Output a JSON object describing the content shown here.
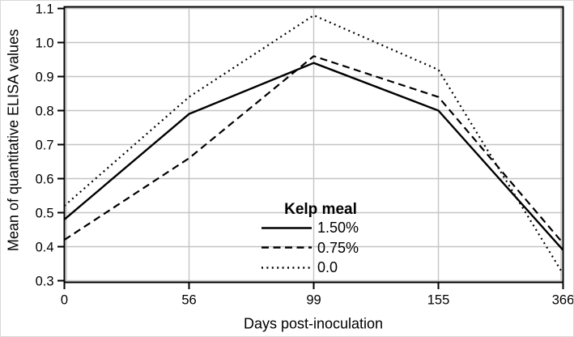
{
  "chart_data": {
    "type": "line",
    "title": "",
    "xlabel": "Days post-inoculation",
    "ylabel": "Mean of quantitative ELISA values",
    "x_tick_labels": [
      "0",
      "56",
      "99",
      "155",
      "366"
    ],
    "y_tick_labels": [
      "0.3",
      "0.4",
      "0.5",
      "0.6",
      "0.7",
      "0.8",
      "0.9",
      "1.0",
      "1.1"
    ],
    "ylim": [
      0.3,
      1.1
    ],
    "grid": true,
    "legend": {
      "title": "Kelp meal",
      "position": "inside-bottom-center",
      "entries": [
        {
          "label": "1.50%",
          "style": "solid"
        },
        {
          "label": "0.75%",
          "style": "dashed"
        },
        {
          "label": "0.0",
          "style": "dotted"
        }
      ]
    },
    "series": [
      {
        "name": "1.50%",
        "style": "solid",
        "values": [
          0.48,
          0.79,
          0.94,
          0.8,
          0.39
        ]
      },
      {
        "name": "0.75%",
        "style": "dashed",
        "values": [
          0.42,
          0.66,
          0.96,
          0.84,
          0.41
        ]
      },
      {
        "name": "0.0",
        "style": "dotted",
        "values": [
          0.52,
          0.84,
          1.08,
          0.92,
          0.32
        ]
      }
    ],
    "colors": {
      "line": "#000000",
      "grid": "#c4c4c4",
      "background": "#ffffff",
      "text": "#000000"
    }
  }
}
